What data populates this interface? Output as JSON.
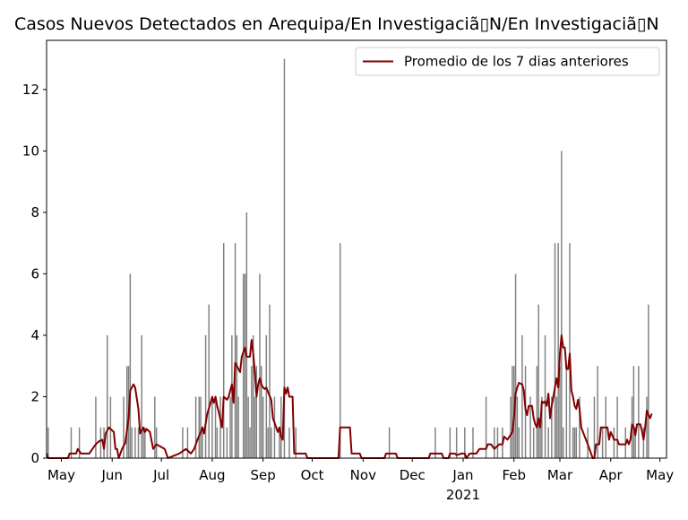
{
  "chart_data": {
    "type": "bar",
    "title": "Casos Nuevos Detectados en Arequipa/En Investigaciã▯N/En Investigaciã▯N",
    "xlabel": "",
    "ylabel": "",
    "ylim": [
      0,
      13.6
    ],
    "y_ticks": [
      0,
      2,
      4,
      6,
      8,
      10,
      12
    ],
    "x_start": "2020-04-22",
    "x_end": "2021-05-05",
    "x_ticks": [
      {
        "date": "2020-05-01",
        "label": "May"
      },
      {
        "date": "2020-06-01",
        "label": "Jun"
      },
      {
        "date": "2020-07-01",
        "label": "Jul"
      },
      {
        "date": "2020-08-01",
        "label": "Aug"
      },
      {
        "date": "2020-09-01",
        "label": "Sep"
      },
      {
        "date": "2020-10-01",
        "label": "Oct"
      },
      {
        "date": "2020-11-01",
        "label": "Nov"
      },
      {
        "date": "2020-12-01",
        "label": "Dec"
      },
      {
        "date": "2021-01-01",
        "label": "Jan"
      },
      {
        "date": "2021-02-01",
        "label": "Feb"
      },
      {
        "date": "2021-03-01",
        "label": "Mar"
      },
      {
        "date": "2021-04-01",
        "label": "Apr"
      },
      {
        "date": "2021-05-01",
        "label": "May"
      }
    ],
    "year_label": "2021",
    "bar_color": "#808080",
    "line_color": "#800000",
    "legend": {
      "placement": "top-right",
      "label": "Promedio de los 7 dias anteriores"
    },
    "daily_cases": [
      [
        "2020-04-23",
        1
      ],
      [
        "2020-05-07",
        1
      ],
      [
        "2020-05-12",
        1
      ],
      [
        "2020-05-22",
        2
      ],
      [
        "2020-05-25",
        1
      ],
      [
        "2020-05-27",
        1
      ],
      [
        "2020-05-29",
        4
      ],
      [
        "2020-05-31",
        2
      ],
      [
        "2020-06-08",
        2
      ],
      [
        "2020-06-10",
        3
      ],
      [
        "2020-06-11",
        3
      ],
      [
        "2020-06-12",
        6
      ],
      [
        "2020-06-13",
        1
      ],
      [
        "2020-06-15",
        1
      ],
      [
        "2020-06-17",
        1
      ],
      [
        "2020-06-19",
        4
      ],
      [
        "2020-06-20",
        1
      ],
      [
        "2020-06-21",
        1
      ],
      [
        "2020-06-27",
        2
      ],
      [
        "2020-06-28",
        1
      ],
      [
        "2020-07-14",
        1
      ],
      [
        "2020-07-17",
        1
      ],
      [
        "2020-07-22",
        2
      ],
      [
        "2020-07-24",
        2
      ],
      [
        "2020-07-25",
        2
      ],
      [
        "2020-07-26",
        1
      ],
      [
        "2020-07-28",
        4
      ],
      [
        "2020-07-30",
        5
      ],
      [
        "2020-08-01",
        2
      ],
      [
        "2020-08-03",
        2
      ],
      [
        "2020-08-04",
        1
      ],
      [
        "2020-08-06",
        2
      ],
      [
        "2020-08-08",
        7
      ],
      [
        "2020-08-10",
        1
      ],
      [
        "2020-08-12",
        2
      ],
      [
        "2020-08-13",
        4
      ],
      [
        "2020-08-15",
        7
      ],
      [
        "2020-08-16",
        4
      ],
      [
        "2020-08-17",
        2
      ],
      [
        "2020-08-20",
        6
      ],
      [
        "2020-08-21",
        6
      ],
      [
        "2020-08-22",
        8
      ],
      [
        "2020-08-23",
        2
      ],
      [
        "2020-08-24",
        1
      ],
      [
        "2020-08-25",
        3
      ],
      [
        "2020-08-26",
        4
      ],
      [
        "2020-08-27",
        2
      ],
      [
        "2020-08-28",
        3
      ],
      [
        "2020-08-30",
        6
      ],
      [
        "2020-08-31",
        3
      ],
      [
        "2020-09-01",
        2
      ],
      [
        "2020-09-03",
        4
      ],
      [
        "2020-09-04",
        1
      ],
      [
        "2020-09-05",
        5
      ],
      [
        "2020-09-06",
        1
      ],
      [
        "2020-09-08",
        2
      ],
      [
        "2020-09-11",
        1
      ],
      [
        "2020-09-12",
        2
      ],
      [
        "2020-09-14",
        13
      ],
      [
        "2020-09-17",
        1
      ],
      [
        "2020-09-21",
        1
      ],
      [
        "2020-10-18",
        7
      ],
      [
        "2020-11-17",
        1
      ],
      [
        "2020-12-15",
        1
      ],
      [
        "2020-12-24",
        1
      ],
      [
        "2020-12-28",
        1
      ],
      [
        "2021-01-02",
        1
      ],
      [
        "2021-01-07",
        1
      ],
      [
        "2021-01-15",
        2
      ],
      [
        "2021-01-20",
        1
      ],
      [
        "2021-01-22",
        1
      ],
      [
        "2021-01-25",
        1
      ],
      [
        "2021-01-30",
        2
      ],
      [
        "2021-01-31",
        3
      ],
      [
        "2021-02-01",
        3
      ],
      [
        "2021-02-02",
        6
      ],
      [
        "2021-02-03",
        2
      ],
      [
        "2021-02-04",
        1
      ],
      [
        "2021-02-06",
        4
      ],
      [
        "2021-02-08",
        3
      ],
      [
        "2021-02-11",
        2
      ],
      [
        "2021-02-13",
        1
      ],
      [
        "2021-02-15",
        3
      ],
      [
        "2021-02-16",
        5
      ],
      [
        "2021-02-17",
        1
      ],
      [
        "2021-02-18",
        2
      ],
      [
        "2021-02-20",
        4
      ],
      [
        "2021-02-22",
        1
      ],
      [
        "2021-02-24",
        2
      ],
      [
        "2021-02-26",
        7
      ],
      [
        "2021-02-27",
        2
      ],
      [
        "2021-02-28",
        7
      ],
      [
        "2021-03-01",
        3
      ],
      [
        "2021-03-02",
        10
      ],
      [
        "2021-03-03",
        1
      ],
      [
        "2021-03-05",
        3
      ],
      [
        "2021-03-07",
        7
      ],
      [
        "2021-03-09",
        1
      ],
      [
        "2021-03-10",
        1
      ],
      [
        "2021-03-11",
        1
      ],
      [
        "2021-03-13",
        2
      ],
      [
        "2021-03-18",
        1
      ],
      [
        "2021-03-22",
        2
      ],
      [
        "2021-03-24",
        3
      ],
      [
        "2021-03-27",
        1
      ],
      [
        "2021-03-29",
        2
      ],
      [
        "2021-04-03",
        1
      ],
      [
        "2021-04-05",
        2
      ],
      [
        "2021-04-10",
        1
      ],
      [
        "2021-04-14",
        2
      ],
      [
        "2021-04-15",
        3
      ],
      [
        "2021-04-16",
        1
      ],
      [
        "2021-04-18",
        3
      ],
      [
        "2021-04-21",
        1
      ],
      [
        "2021-04-23",
        2
      ],
      [
        "2021-04-24",
        5
      ]
    ],
    "rolling_avg_7d": [
      [
        "2020-04-22",
        0.15
      ],
      [
        "2020-04-23",
        0
      ],
      [
        "2020-05-05",
        0
      ],
      [
        "2020-05-06",
        0.15
      ],
      [
        "2020-05-10",
        0.15
      ],
      [
        "2020-05-11",
        0.3
      ],
      [
        "2020-05-13",
        0.15
      ],
      [
        "2020-05-18",
        0.15
      ],
      [
        "2020-05-20",
        0.3
      ],
      [
        "2020-05-22",
        0.45
      ],
      [
        "2020-05-24",
        0.55
      ],
      [
        "2020-05-26",
        0.6
      ],
      [
        "2020-05-27",
        0.3
      ],
      [
        "2020-05-28",
        0.8
      ],
      [
        "2020-05-30",
        1.0
      ],
      [
        "2020-06-02",
        0.85
      ],
      [
        "2020-06-03",
        0.3
      ],
      [
        "2020-06-04",
        0.3
      ],
      [
        "2020-06-05",
        0
      ],
      [
        "2020-06-07",
        0.3
      ],
      [
        "2020-06-09",
        0.5
      ],
      [
        "2020-06-11",
        1.3
      ],
      [
        "2020-06-12",
        2.2
      ],
      [
        "2020-06-14",
        2.4
      ],
      [
        "2020-06-15",
        2.3
      ],
      [
        "2020-06-17",
        1.6
      ],
      [
        "2020-06-18",
        0.8
      ],
      [
        "2020-06-20",
        1.0
      ],
      [
        "2020-06-21",
        0.85
      ],
      [
        "2020-06-22",
        0.95
      ],
      [
        "2020-06-24",
        0.85
      ],
      [
        "2020-06-26",
        0.3
      ],
      [
        "2020-06-28",
        0.45
      ],
      [
        "2020-07-03",
        0.3
      ],
      [
        "2020-07-05",
        0
      ],
      [
        "2020-07-12",
        0.15
      ],
      [
        "2020-07-16",
        0.3
      ],
      [
        "2020-07-19",
        0.15
      ],
      [
        "2020-07-21",
        0.3
      ],
      [
        "2020-07-23",
        0.6
      ],
      [
        "2020-07-25",
        0.85
      ],
      [
        "2020-07-26",
        1.0
      ],
      [
        "2020-07-27",
        0.8
      ],
      [
        "2020-07-29",
        1.45
      ],
      [
        "2020-07-31",
        1.8
      ],
      [
        "2020-08-01",
        2.0
      ],
      [
        "2020-08-02",
        1.8
      ],
      [
        "2020-08-03",
        2.0
      ],
      [
        "2020-08-04",
        1.7
      ],
      [
        "2020-08-05",
        1.5
      ],
      [
        "2020-08-07",
        1.0
      ],
      [
        "2020-08-08",
        2.0
      ],
      [
        "2020-08-10",
        1.9
      ],
      [
        "2020-08-11",
        2.0
      ],
      [
        "2020-08-13",
        2.4
      ],
      [
        "2020-08-14",
        1.8
      ],
      [
        "2020-08-15",
        3.1
      ],
      [
        "2020-08-16",
        3.0
      ],
      [
        "2020-08-18",
        2.8
      ],
      [
        "2020-08-19",
        3.3
      ],
      [
        "2020-08-21",
        3.6
      ],
      [
        "2020-08-22",
        3.3
      ],
      [
        "2020-08-24",
        3.3
      ],
      [
        "2020-08-25",
        3.85
      ],
      [
        "2020-08-26",
        3.4
      ],
      [
        "2020-08-27",
        2.8
      ],
      [
        "2020-08-28",
        2.0
      ],
      [
        "2020-08-29",
        2.4
      ],
      [
        "2020-08-30",
        2.6
      ],
      [
        "2020-08-31",
        2.4
      ],
      [
        "2020-09-01",
        2.3
      ],
      [
        "2020-09-02",
        2.25
      ],
      [
        "2020-09-03",
        2.3
      ],
      [
        "2020-09-04",
        2.15
      ],
      [
        "2020-09-06",
        1.9
      ],
      [
        "2020-09-07",
        1.3
      ],
      [
        "2020-09-08",
        1.15
      ],
      [
        "2020-09-09",
        1.0
      ],
      [
        "2020-09-10",
        0.85
      ],
      [
        "2020-09-11",
        1.0
      ],
      [
        "2020-09-12",
        0.7
      ],
      [
        "2020-09-13",
        0.6
      ],
      [
        "2020-09-14",
        2.3
      ],
      [
        "2020-09-15",
        2.1
      ],
      [
        "2020-09-16",
        2.3
      ],
      [
        "2020-09-17",
        2.0
      ],
      [
        "2020-09-19",
        2.0
      ],
      [
        "2020-09-20",
        0.15
      ],
      [
        "2020-09-27",
        0.15
      ],
      [
        "2020-09-28",
        0
      ],
      [
        "2020-10-15",
        0
      ],
      [
        "2020-10-16",
        0
      ],
      [
        "2020-10-17",
        0
      ],
      [
        "2020-10-18",
        1.0
      ],
      [
        "2020-10-24",
        1.0
      ],
      [
        "2020-10-25",
        0.15
      ],
      [
        "2020-10-30",
        0.15
      ],
      [
        "2020-10-31",
        0
      ],
      [
        "2020-11-14",
        0
      ],
      [
        "2020-11-15",
        0.15
      ],
      [
        "2020-11-21",
        0.15
      ],
      [
        "2020-11-22",
        0
      ],
      [
        "2020-12-11",
        0
      ],
      [
        "2020-12-12",
        0.15
      ],
      [
        "2020-12-19",
        0.15
      ],
      [
        "2020-12-20",
        0
      ],
      [
        "2020-12-23",
        0
      ],
      [
        "2020-12-24",
        0.15
      ],
      [
        "2020-12-27",
        0.15
      ],
      [
        "2020-12-28",
        0.1
      ],
      [
        "2020-12-31",
        0.15
      ],
      [
        "2021-01-02",
        0.15
      ],
      [
        "2021-01-03",
        0
      ],
      [
        "2021-01-05",
        0.15
      ],
      [
        "2021-01-09",
        0.15
      ],
      [
        "2021-01-11",
        0.3
      ],
      [
        "2021-01-14",
        0.3
      ],
      [
        "2021-01-15",
        0.3
      ],
      [
        "2021-01-16",
        0.45
      ],
      [
        "2021-01-18",
        0.45
      ],
      [
        "2021-01-20",
        0.3
      ],
      [
        "2021-01-23",
        0.45
      ],
      [
        "2021-01-25",
        0.45
      ],
      [
        "2021-01-26",
        0.7
      ],
      [
        "2021-01-28",
        0.6
      ],
      [
        "2021-01-31",
        0.85
      ],
      [
        "2021-02-01",
        1.3
      ],
      [
        "2021-02-02",
        2.1
      ],
      [
        "2021-02-03",
        2.3
      ],
      [
        "2021-02-04",
        2.45
      ],
      [
        "2021-02-06",
        2.4
      ],
      [
        "2021-02-07",
        2.2
      ],
      [
        "2021-02-08",
        1.6
      ],
      [
        "2021-02-09",
        1.4
      ],
      [
        "2021-02-10",
        1.7
      ],
      [
        "2021-02-12",
        1.7
      ],
      [
        "2021-02-13",
        1.3
      ],
      [
        "2021-02-14",
        1.1
      ],
      [
        "2021-02-15",
        1.0
      ],
      [
        "2021-02-16",
        1.3
      ],
      [
        "2021-02-17",
        1.0
      ],
      [
        "2021-02-18",
        1.85
      ],
      [
        "2021-02-19",
        1.8
      ],
      [
        "2021-02-20",
        1.85
      ],
      [
        "2021-02-21",
        1.7
      ],
      [
        "2021-02-22",
        2.1
      ],
      [
        "2021-02-23",
        1.3
      ],
      [
        "2021-02-24",
        1.7
      ],
      [
        "2021-02-25",
        2.0
      ],
      [
        "2021-02-26",
        2.3
      ],
      [
        "2021-02-27",
        2.6
      ],
      [
        "2021-02-28",
        2.3
      ],
      [
        "2021-03-01",
        3.4
      ],
      [
        "2021-03-02",
        4.0
      ],
      [
        "2021-03-03",
        3.6
      ],
      [
        "2021-03-04",
        3.6
      ],
      [
        "2021-03-05",
        2.9
      ],
      [
        "2021-03-06",
        2.9
      ],
      [
        "2021-03-07",
        3.4
      ],
      [
        "2021-03-08",
        2.2
      ],
      [
        "2021-03-09",
        2.0
      ],
      [
        "2021-03-10",
        1.7
      ],
      [
        "2021-03-11",
        1.6
      ],
      [
        "2021-03-12",
        1.9
      ],
      [
        "2021-03-13",
        1.6
      ],
      [
        "2021-03-14",
        1.0
      ],
      [
        "2021-03-18",
        0.45
      ],
      [
        "2021-03-21",
        0
      ],
      [
        "2021-03-22",
        0
      ],
      [
        "2021-03-23",
        0.45
      ],
      [
        "2021-03-25",
        0.45
      ],
      [
        "2021-03-26",
        1.0
      ],
      [
        "2021-03-30",
        1.0
      ],
      [
        "2021-03-31",
        0.6
      ],
      [
        "2021-04-01",
        0.85
      ],
      [
        "2021-04-03",
        0.6
      ],
      [
        "2021-04-05",
        0.6
      ],
      [
        "2021-04-06",
        0.45
      ],
      [
        "2021-04-10",
        0.45
      ],
      [
        "2021-04-11",
        0.6
      ],
      [
        "2021-04-12",
        0.45
      ],
      [
        "2021-04-13",
        0.6
      ],
      [
        "2021-04-14",
        1.1
      ],
      [
        "2021-04-15",
        1.0
      ],
      [
        "2021-04-16",
        0.75
      ],
      [
        "2021-04-17",
        1.1
      ],
      [
        "2021-04-19",
        1.1
      ],
      [
        "2021-04-20",
        0.9
      ],
      [
        "2021-04-21",
        0.6
      ],
      [
        "2021-04-22",
        1.0
      ],
      [
        "2021-04-23",
        1.55
      ],
      [
        "2021-04-24",
        1.4
      ],
      [
        "2021-04-25",
        1.3
      ],
      [
        "2021-04-26",
        1.45
      ]
    ]
  }
}
